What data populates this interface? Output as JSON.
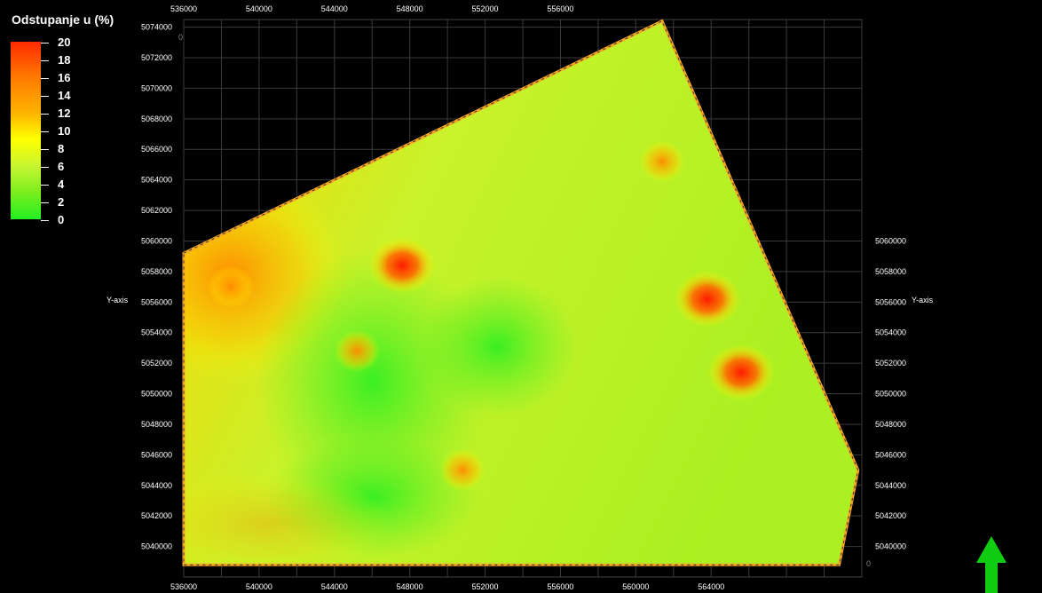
{
  "legend": {
    "title": "Odstupanje u (%)",
    "ticks": [
      {
        "label": "20",
        "value": 20
      },
      {
        "label": "18",
        "value": 18
      },
      {
        "label": "16",
        "value": 16
      },
      {
        "label": "14",
        "value": 14
      },
      {
        "label": "12",
        "value": 12
      },
      {
        "label": "10",
        "value": 10
      },
      {
        "label": "8",
        "value": 8
      },
      {
        "label": "6",
        "value": 6
      },
      {
        "label": "4",
        "value": 4
      },
      {
        "label": "2",
        "value": 2
      },
      {
        "label": "0",
        "value": 0
      }
    ],
    "colors": [
      "#ff2a00",
      "#ff7a00",
      "#ffb300",
      "#ffff00",
      "#c8f532",
      "#7aee1e",
      "#22ee22"
    ]
  },
  "axes": {
    "y_axis_label_left": "Y-axis",
    "y_axis_label_right": "Y-axis",
    "x_top_ticks": [
      "536000",
      "540000",
      "544000",
      "548000",
      "552000",
      "556000"
    ],
    "x_bottom_ticks": [
      "536000",
      "540000",
      "544000",
      "548000",
      "552000",
      "556000",
      "560000",
      "564000"
    ],
    "y_left_ticks": [
      "5074000",
      "5072000",
      "5070000",
      "5068000",
      "5066000",
      "5064000",
      "5062000",
      "5060000",
      "5058000",
      "5056000",
      "5054000",
      "5052000",
      "5050000",
      "5048000",
      "5046000",
      "5044000",
      "5042000",
      "5040000"
    ],
    "y_right_ticks": [
      "5060000",
      "5058000",
      "5056000",
      "5054000",
      "5052000",
      "5050000",
      "5048000",
      "5046000",
      "5044000",
      "5042000",
      "5040000"
    ],
    "x_range": [
      536000,
      572000
    ],
    "y_range": [
      5038000,
      5074500
    ],
    "corner_labels": [
      "0",
      "0"
    ]
  },
  "map": {
    "boundary_color": "#f5a623",
    "grid": true,
    "boundary": [
      [
        536000,
        5059200
      ],
      [
        561400,
        5074400
      ],
      [
        571800,
        5045000
      ],
      [
        570800,
        5038800
      ],
      [
        536000,
        5038800
      ]
    ],
    "hotspots": [
      {
        "x": 547600,
        "y": 5058400,
        "value": 20
      },
      {
        "x": 563800,
        "y": 5056200,
        "value": 20
      },
      {
        "x": 565600,
        "y": 5051400,
        "value": 18
      },
      {
        "x": 550800,
        "y": 5045000,
        "value": 14
      },
      {
        "x": 545200,
        "y": 5052800,
        "value": 12
      },
      {
        "x": 538500,
        "y": 5057000,
        "value": 14
      },
      {
        "x": 561400,
        "y": 5065200,
        "value": 12
      }
    ]
  },
  "north_arrow": {
    "color": "#11cc11"
  }
}
